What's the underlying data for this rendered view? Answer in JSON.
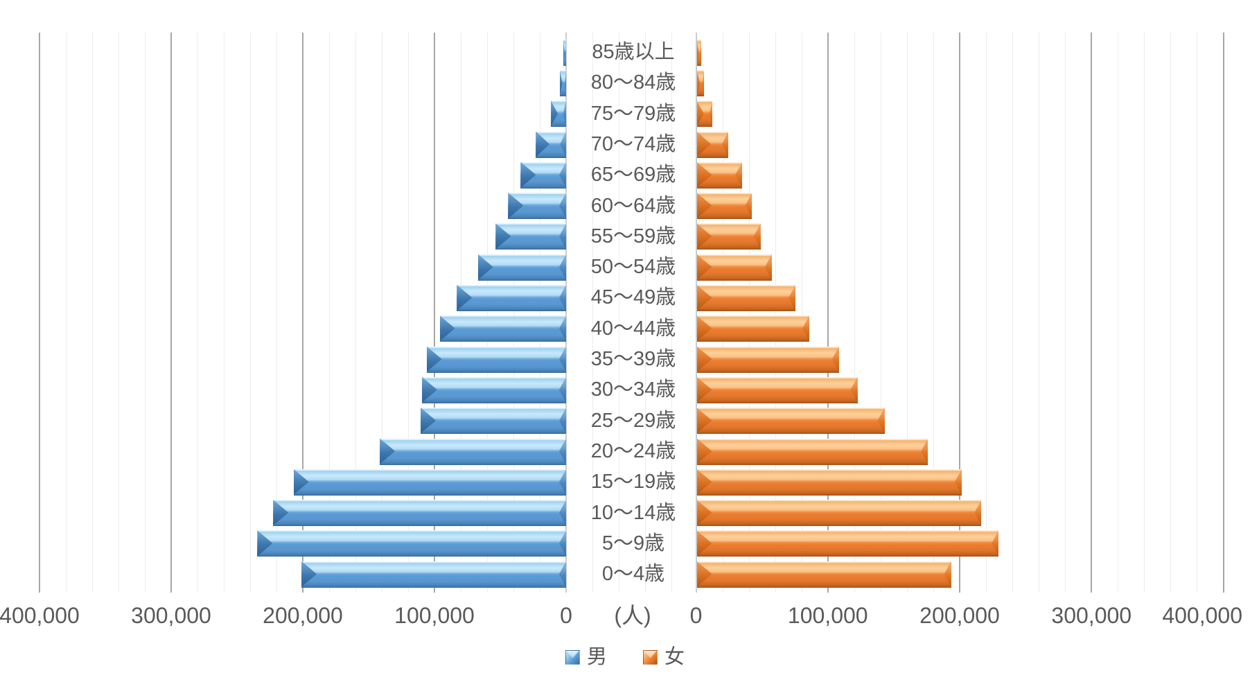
{
  "chart_data": {
    "type": "bar",
    "variant": "population-pyramid",
    "orientation": "horizontal",
    "unit_label": "(人)",
    "categories_top_to_bottom": [
      "85歳以上",
      "80〜84歳",
      "75〜79歳",
      "70〜74歳",
      "65〜69歳",
      "60〜64歳",
      "55〜59歳",
      "50〜54歳",
      "45〜49歳",
      "40〜44歳",
      "35〜39歳",
      "30〜34歳",
      "25〜29歳",
      "20〜24歳",
      "15〜19歳",
      "10〜14歳",
      "5〜9歳",
      "0〜4歳"
    ],
    "series": [
      {
        "name": "男",
        "side": "left",
        "color": "#5B9BD5",
        "values": [
          2000,
          5000,
          11500,
          23000,
          34500,
          44000,
          53500,
          67000,
          83000,
          96000,
          106000,
          109500,
          110500,
          141500,
          207000,
          222500,
          234500,
          201000
        ]
      },
      {
        "name": "女",
        "side": "right",
        "color": "#ED7D31",
        "values": [
          3500,
          5500,
          12000,
          24000,
          34500,
          42000,
          48500,
          57000,
          75000,
          85500,
          108000,
          122000,
          142500,
          175500,
          201000,
          216000,
          229000,
          193000
        ]
      }
    ],
    "x_axis": {
      "max": 400000,
      "major_step": 100000,
      "minor_step": 20000,
      "left_ticks": [
        "400,000",
        "300,000",
        "200,000",
        "100,000",
        "0"
      ],
      "right_ticks": [
        "0",
        "100,000",
        "200,000",
        "300,000",
        "400,000"
      ],
      "grid": true
    },
    "legend": [
      {
        "label": "男",
        "color": "#5B9BD5"
      },
      {
        "label": "女",
        "color": "#ED7D31"
      }
    ],
    "colors": {
      "axis_text": "#595959",
      "major_gridline": "#A6A6A6",
      "minor_gridline": "#ECECEC",
      "background": "#FFFFFF"
    }
  }
}
